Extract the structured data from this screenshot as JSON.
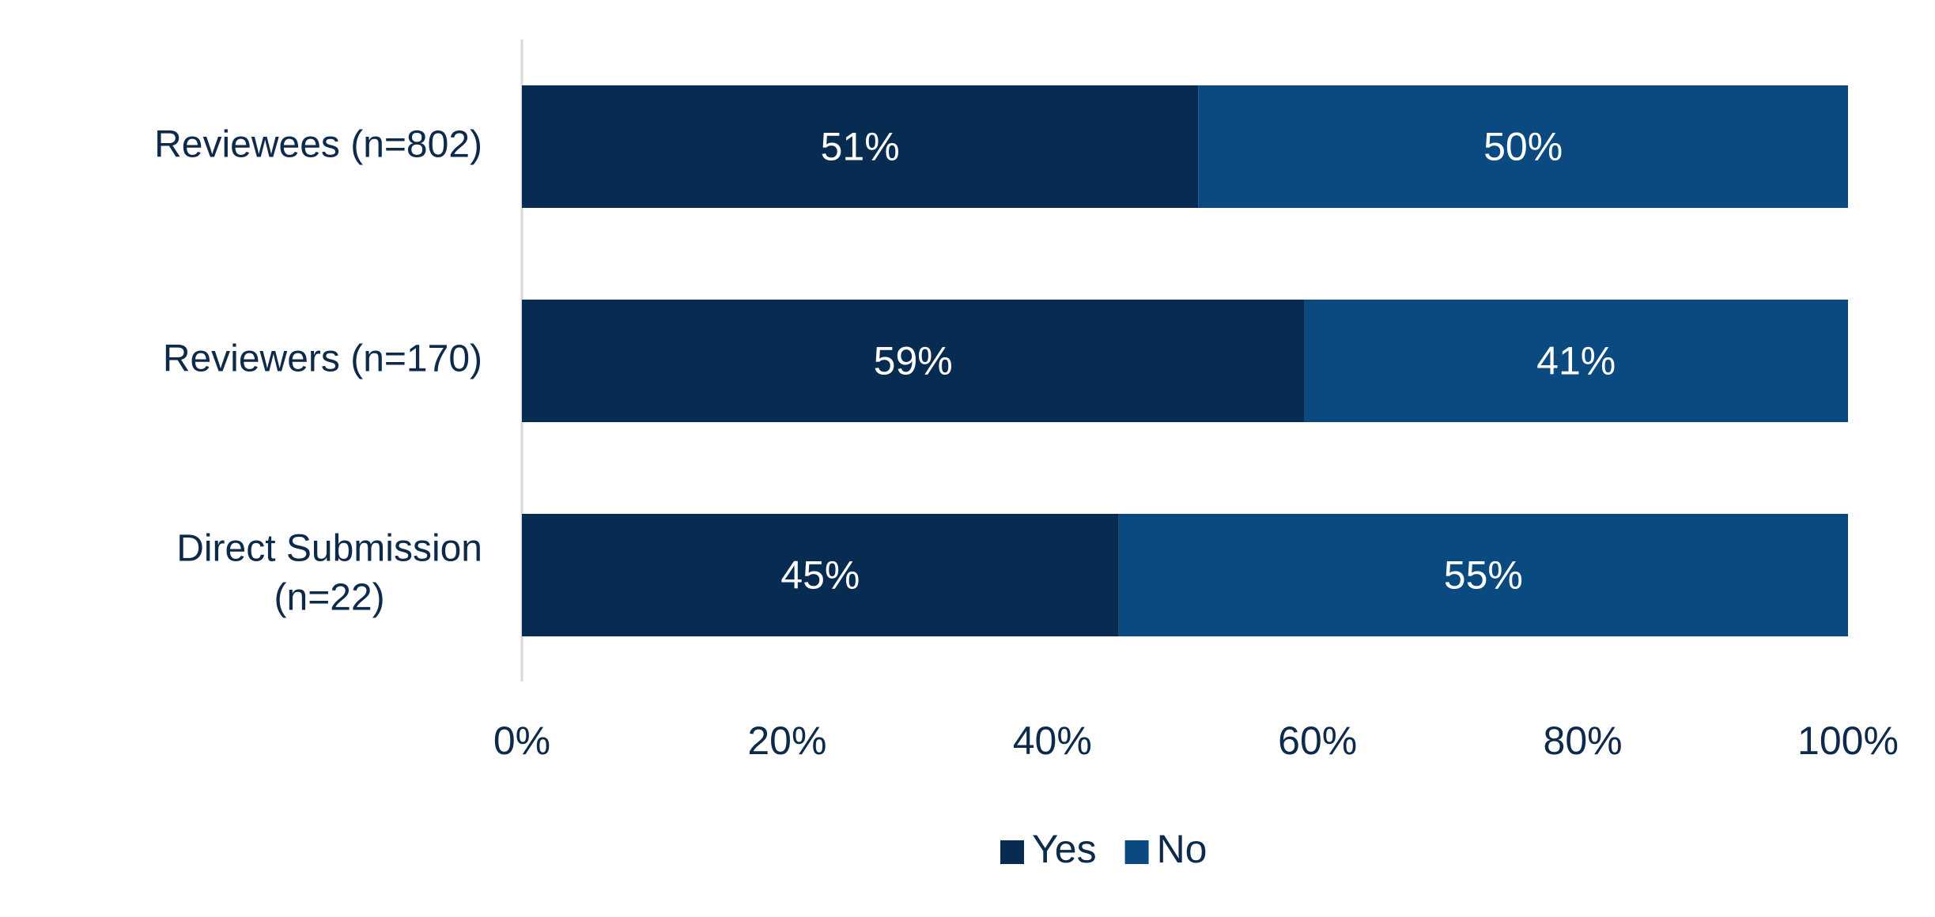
{
  "chart_data": {
    "type": "bar",
    "orientation": "horizontal",
    "stacked": true,
    "categories": [
      [
        "Reviewees (n=802)"
      ],
      [
        "Reviewers (n=170)"
      ],
      [
        "Direct Submission",
        "(n=22)"
      ]
    ],
    "series": [
      {
        "name": "Yes",
        "color": "#082c51",
        "values": [
          51,
          59,
          45
        ],
        "labels": [
          "51%",
          "59%",
          "45%"
        ]
      },
      {
        "name": "No",
        "color": "#0b4a80",
        "values": [
          50,
          41,
          55
        ],
        "labels": [
          "50%",
          "41%",
          "55%"
        ]
      }
    ],
    "xlim": [
      0,
      100
    ],
    "xticks": [
      0,
      20,
      40,
      60,
      80,
      100
    ],
    "xtick_labels": [
      "0%",
      "20%",
      "40%",
      "60%",
      "80%",
      "100%"
    ],
    "grid": false,
    "legend": {
      "position": "bottom-center"
    },
    "colors": {
      "text": "#0d2a4a",
      "axis_line": "#d9d9d9",
      "bar_label": "#ffffff"
    }
  }
}
